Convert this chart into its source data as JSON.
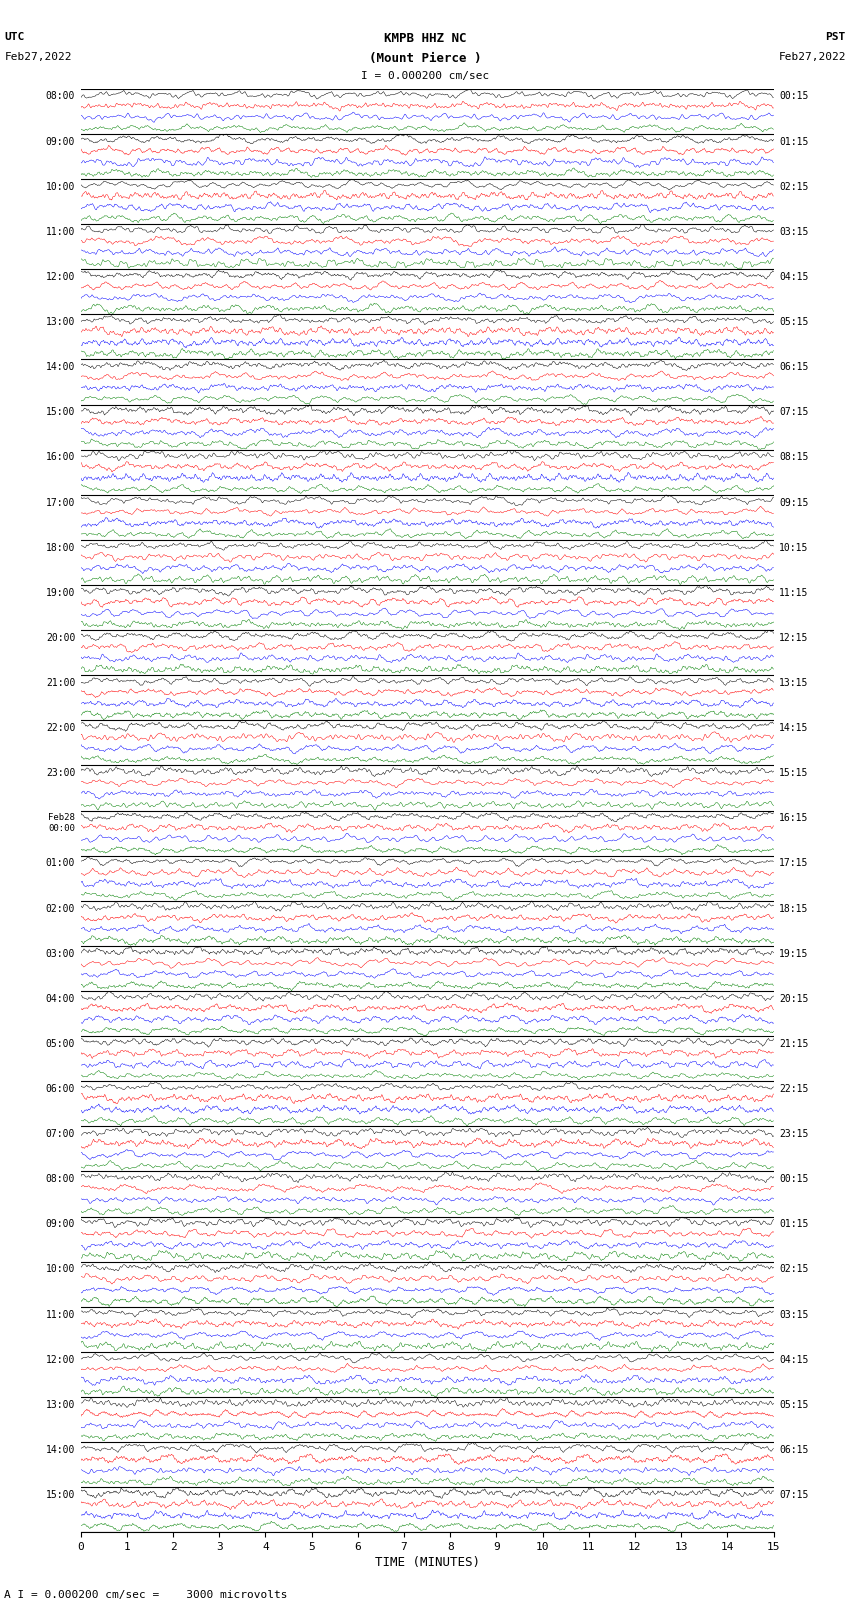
{
  "title_line1": "KMPB HHZ NC",
  "title_line2": "(Mount Pierce )",
  "scale_text": "I = 0.000200 cm/sec",
  "left_header1": "UTC",
  "left_header2": "Feb27,2022",
  "right_header1": "PST",
  "right_header2": "Feb27,2022",
  "footer_text": "A I = 0.000200 cm/sec =    3000 microvolts",
  "xlabel": "TIME (MINUTES)",
  "x_ticks": [
    0,
    1,
    2,
    3,
    4,
    5,
    6,
    7,
    8,
    9,
    10,
    11,
    12,
    13,
    14,
    15
  ],
  "num_rows": 32,
  "traces_per_row": 4,
  "colors": [
    "black",
    "red",
    "blue",
    "green"
  ],
  "utc_labels": [
    "08:00",
    "09:00",
    "10:00",
    "11:00",
    "12:00",
    "13:00",
    "14:00",
    "15:00",
    "16:00",
    "17:00",
    "18:00",
    "19:00",
    "20:00",
    "21:00",
    "22:00",
    "23:00",
    "Feb28\n00:00",
    "01:00",
    "02:00",
    "03:00",
    "04:00",
    "05:00",
    "06:00",
    "07:00",
    "08:00",
    "09:00",
    "10:00",
    "11:00",
    "12:00",
    "13:00",
    "14:00",
    "15:00"
  ],
  "pst_labels": [
    "00:15",
    "01:15",
    "02:15",
    "03:15",
    "04:15",
    "05:15",
    "06:15",
    "07:15",
    "08:15",
    "09:15",
    "10:15",
    "11:15",
    "12:15",
    "13:15",
    "14:15",
    "15:15",
    "16:15",
    "17:15",
    "18:15",
    "19:15",
    "20:15",
    "21:15",
    "22:15",
    "23:15",
    "00:15",
    "01:15",
    "02:15",
    "03:15",
    "04:15",
    "05:15",
    "06:15",
    "07:15"
  ],
  "background_color": "white",
  "fig_width": 8.5,
  "fig_height": 16.13,
  "dpi": 100
}
